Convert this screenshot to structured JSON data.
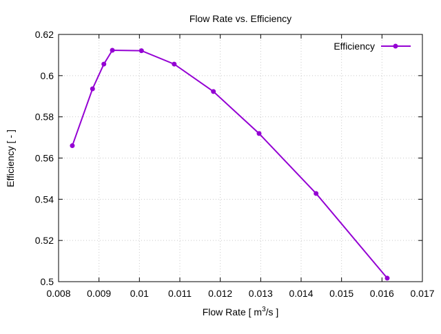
{
  "chart_data": {
    "type": "line",
    "title": "Flow Rate  vs. Efficiency",
    "xlabel_main": "Flow Rate [ m",
    "xlabel_sup": "3",
    "xlabel_tail": "/s ]",
    "ylabel": "Efficiency [ - ]",
    "xlim": [
      0.008,
      0.017
    ],
    "ylim": [
      0.5,
      0.62
    ],
    "xticks": [
      "0.008",
      "0.009",
      "0.01",
      "0.011",
      "0.012",
      "0.013",
      "0.014",
      "0.015",
      "0.016",
      "0.017"
    ],
    "yticks": [
      "0.5",
      "0.52",
      "0.54",
      "0.56",
      "0.58",
      "0.6",
      "0.62"
    ],
    "grid": true,
    "legend": "top-right",
    "series": [
      {
        "name": "Efficiency",
        "color": "#9400d3",
        "x": [
          0.00834,
          0.00884,
          0.00912,
          0.00933,
          0.01005,
          0.01086,
          0.01183,
          0.01296,
          0.01437,
          0.01613
        ],
        "y": [
          0.566,
          0.5936,
          0.6056,
          0.6123,
          0.6121,
          0.6056,
          0.5923,
          0.5719,
          0.5428,
          0.5017
        ]
      }
    ]
  }
}
